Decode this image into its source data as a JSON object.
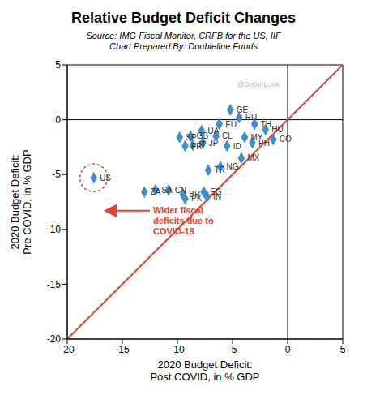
{
  "chart_data": {
    "type": "scatter",
    "title": "Relative Budget Deficit Changes",
    "subtitle": [
      "Source: IMG Fiscal Monitor, CRFB for the US, IIF",
      "Chart Prepared By: Doubleline Funds"
    ],
    "xlabel": [
      "2020 Budget Deficit:",
      "Post COVID, in % GDP"
    ],
    "ylabel": [
      "2020 Budget Deficit:",
      "Pre COVID, in % GDP"
    ],
    "annotations": [
      "Wider fiscal deficits due to COVID-19",
      "@SoberLook"
    ],
    "color": "#3e8ed0",
    "marker": "diamond",
    "xlim": [
      -20,
      5
    ],
    "ylim": [
      -20,
      5
    ],
    "xticks": [
      -20,
      -15,
      -10,
      -5,
      0,
      5
    ],
    "yticks": [
      -20,
      -15,
      -10,
      -5,
      0,
      5
    ],
    "grid": false,
    "points": [
      {
        "label": "US",
        "x": -17.6,
        "y": -5.3
      },
      {
        "label": "ZA",
        "x": -13.0,
        "y": -6.6
      },
      {
        "label": "SA",
        "x": -12.0,
        "y": -6.4
      },
      {
        "label": "CN",
        "x": -10.8,
        "y": -6.4
      },
      {
        "label": "BR",
        "x": -9.5,
        "y": -6.8
      },
      {
        "label": "PK",
        "x": -9.3,
        "y": -7.2
      },
      {
        "label": "EG",
        "x": -7.6,
        "y": -6.6
      },
      {
        "label": "IN",
        "x": -7.3,
        "y": -7.0
      },
      {
        "label": "TR",
        "x": -7.2,
        "y": -4.6
      },
      {
        "label": "NG",
        "x": -6.1,
        "y": -4.3
      },
      {
        "label": "FR",
        "x": -9.3,
        "y": -2.4
      },
      {
        "label": "IT",
        "x": -8.6,
        "y": -2.3
      },
      {
        "label": "SP",
        "x": -9.8,
        "y": -1.6
      },
      {
        "label": "GB",
        "x": -8.8,
        "y": -1.5
      },
      {
        "label": "JP",
        "x": -7.7,
        "y": -2.1
      },
      {
        "label": "UA",
        "x": -7.8,
        "y": -1.0
      },
      {
        "label": "CL",
        "x": -6.5,
        "y": -1.5
      },
      {
        "label": "EU",
        "x": -6.2,
        "y": -0.4
      },
      {
        "label": "ID",
        "x": -5.5,
        "y": -2.4
      },
      {
        "label": "GE",
        "x": -5.2,
        "y": 0.9
      },
      {
        "label": "RU",
        "x": -4.4,
        "y": 0.2
      },
      {
        "label": "TH",
        "x": -3.0,
        "y": -0.4
      },
      {
        "label": "MY",
        "x": -3.9,
        "y": -1.6
      },
      {
        "label": "PH",
        "x": -3.2,
        "y": -2.1
      },
      {
        "label": "MX",
        "x": -4.2,
        "y": -3.5
      },
      {
        "label": "HU",
        "x": -2.0,
        "y": -0.9
      },
      {
        "label": "CO",
        "x": -1.3,
        "y": -1.8
      }
    ]
  }
}
